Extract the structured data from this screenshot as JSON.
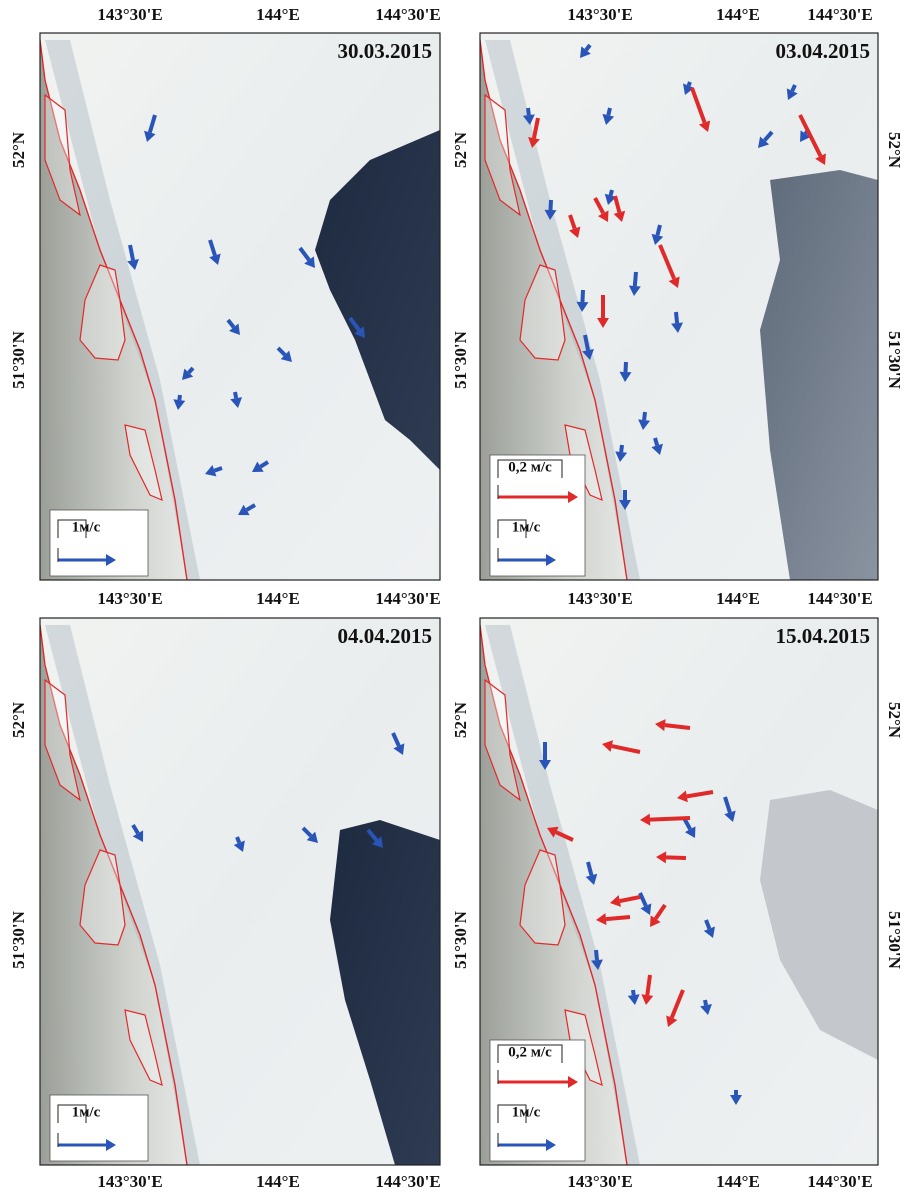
{
  "panels": [
    {
      "date": "30.03.2015",
      "scale_labels": [
        "1м/с"
      ]
    },
    {
      "date": "03.04.2015",
      "scale_labels": [
        "0,2 м/с",
        "1м/с"
      ]
    },
    {
      "date": "04.04.2015",
      "scale_labels": [
        "1м/с"
      ]
    },
    {
      "date": "15.04.2015",
      "scale_labels": [
        "0,2 м/с",
        "1м/с"
      ]
    }
  ],
  "longitude_labels": [
    "143°30'E",
    "144°E",
    "144°30'E"
  ],
  "latitude_labels": [
    "52°N",
    "51°30'N"
  ]
}
